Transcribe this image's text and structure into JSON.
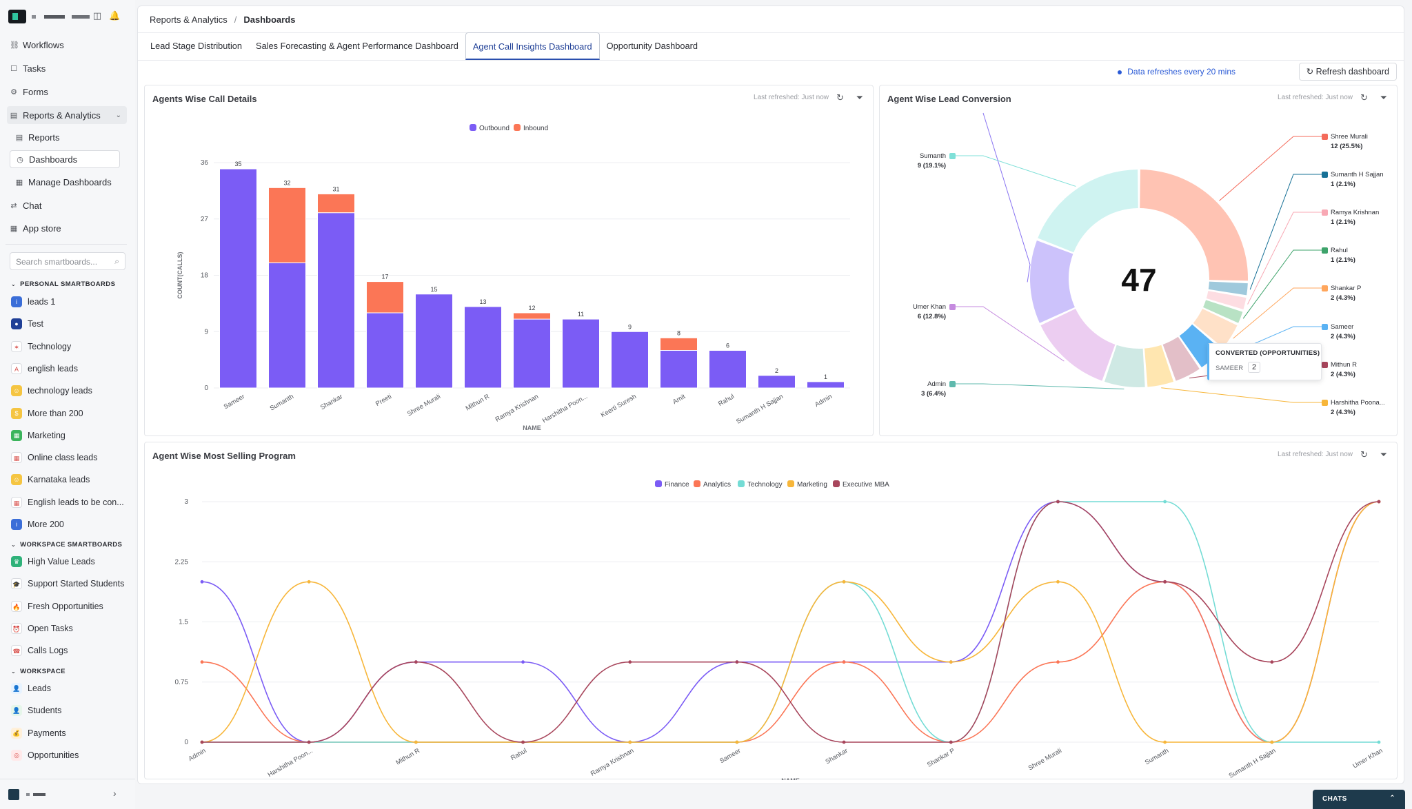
{
  "sidebar": {
    "nav": [
      {
        "label": "Workflows",
        "icon": "workflow-icon"
      },
      {
        "label": "Tasks",
        "icon": "task-icon"
      },
      {
        "label": "Forms",
        "icon": "form-icon"
      },
      {
        "label": "Reports & Analytics",
        "icon": "report-icon"
      },
      {
        "label": "Reports",
        "icon": "report-icon"
      },
      {
        "label": "Dashboards",
        "icon": "dashboard-icon"
      },
      {
        "label": "Manage Dashboards",
        "icon": "grid-icon"
      },
      {
        "label": "Chat",
        "icon": "chat-icon"
      },
      {
        "label": "App store",
        "icon": "app-store-icon"
      }
    ],
    "search_placeholder": "Search smartboards...",
    "personal_heading": "PERSONAL SMARTBOARDS",
    "personal": [
      {
        "label": "leads 1",
        "color": "#3b6ed8",
        "glyph": "i"
      },
      {
        "label": "Test",
        "color": "#1f3f96",
        "glyph": "●"
      },
      {
        "label": "Technology",
        "color": "#ffffff",
        "glyph": "✶"
      },
      {
        "label": "english leads",
        "color": "#ffffff",
        "glyph": "A"
      },
      {
        "label": "technology leads",
        "color": "#f5c542",
        "glyph": "☺"
      },
      {
        "label": "More than 200",
        "color": "#f5c542",
        "glyph": "$"
      },
      {
        "label": "Marketing",
        "color": "#3bb45c",
        "glyph": "▦"
      },
      {
        "label": "Online class leads",
        "color": "#ffffff",
        "glyph": "▦"
      },
      {
        "label": "Karnataka leads",
        "color": "#f5c542",
        "glyph": "☺"
      },
      {
        "label": "English leads to be con...",
        "color": "#ffffff",
        "glyph": "▦"
      },
      {
        "label": "More 200",
        "color": "#3b6ed8",
        "glyph": "i"
      }
    ],
    "workspace_sb_heading": "WORKSPACE SMARTBOARDS",
    "workspace_sb": [
      {
        "label": "High Value Leads",
        "color": "#2fb27a",
        "glyph": "♛"
      },
      {
        "label": "Support Started Students",
        "color": "#ffffff",
        "glyph": "🎓"
      },
      {
        "label": "Fresh Opportunities",
        "color": "#ffffff",
        "glyph": "🔥"
      },
      {
        "label": "Open Tasks",
        "color": "#ffffff",
        "glyph": "⏰"
      },
      {
        "label": "Calls Logs",
        "color": "#ffffff",
        "glyph": "☎"
      }
    ],
    "workspace_heading": "WORKSPACE",
    "workspace": [
      {
        "label": "Leads",
        "color": "#e7f3ff",
        "glyph": "👤"
      },
      {
        "label": "Students",
        "color": "#e6f6ea",
        "glyph": "👤"
      },
      {
        "label": "Payments",
        "color": "#fff0d9",
        "glyph": "💰"
      },
      {
        "label": "Opportunities",
        "color": "#ffe9ea",
        "glyph": "◎"
      }
    ]
  },
  "breadcrumb": {
    "parent": "Reports & Analytics",
    "separator": "/",
    "current": "Dashboards"
  },
  "tabs": [
    {
      "label": "Lead Stage Distribution",
      "active": false
    },
    {
      "label": "Sales Forecasting & Agent Performance Dashboard",
      "active": false
    },
    {
      "label": "Agent Call Insights Dashboard",
      "active": true
    },
    {
      "label": "Opportunity Dashboard",
      "active": false
    }
  ],
  "refresh_note": "Data refreshes every 20 mins",
  "refresh_button": "Refresh dashboard",
  "card_meta": "Last refreshed: Just now",
  "chats_label": "CHATS",
  "tooltip": {
    "title": "CONVERTED (OPPORTUNITIES)",
    "key": "SAMEER",
    "value": "2"
  },
  "chart_data": [
    {
      "type": "bar",
      "title": "Agents Wise Call Details",
      "stacked": true,
      "xlabel": "NAME",
      "ylabel": "COUNT(CALLS)",
      "ylim": [
        0,
        36
      ],
      "yticks": [
        0,
        9,
        18,
        27,
        36
      ],
      "legend_position": "top-center",
      "categories": [
        "Sameer",
        "Sumanth",
        "Shankar",
        "Preeti",
        "Shree Murali",
        "Mithun R",
        "Ramya Krishnan",
        "Harshitha Poon...",
        "Keerti Suresh",
        "Amit",
        "Rahul",
        "Sumanth H Sajjan",
        "Admin"
      ],
      "series": [
        {
          "name": "Outbound",
          "color": "#7b5cf5",
          "values": [
            35,
            20,
            28,
            12,
            15,
            13,
            11,
            11,
            9,
            6,
            6,
            2,
            1
          ]
        },
        {
          "name": "Inbound",
          "color": "#fb7656",
          "values": [
            0,
            12,
            3,
            5,
            0,
            0,
            1,
            0,
            0,
            2,
            0,
            0,
            0
          ]
        }
      ],
      "totals": [
        35,
        32,
        31,
        17,
        15,
        13,
        12,
        11,
        9,
        8,
        6,
        2,
        1
      ]
    },
    {
      "type": "pie",
      "title": "Agent Wise Lead Conversion",
      "donut": true,
      "center_value": "47",
      "slices": [
        {
          "label": "Shree Murali",
          "value": 12,
          "percent": "12 (25.5%)",
          "color": "#ffc3b3"
        },
        {
          "label": "Sumanth H Sajjan",
          "value": 1,
          "percent": "1 (2.1%)",
          "color": "#9fc9dc"
        },
        {
          "label": "Ramya Krishnan",
          "value": 1,
          "percent": "1 (2.1%)",
          "color": "#fddde2"
        },
        {
          "label": "Rahul",
          "value": 1,
          "percent": "1 (2.1%)",
          "color": "#b8e2c4"
        },
        {
          "label": "Shankar P",
          "value": 2,
          "percent": "2 (4.3%)",
          "color": "#ffe1c8"
        },
        {
          "label": "Sameer",
          "value": 2,
          "percent": "2 (4.3%)",
          "color": "#5ab2f3"
        },
        {
          "label": "Mithun R",
          "value": 2,
          "percent": "2 (4.3%)",
          "color": "#e3bfc8"
        },
        {
          "label": "Harshitha Poona...",
          "value": 2,
          "percent": "2 (4.3%)",
          "color": "#ffe6b0"
        },
        {
          "label": "Admin",
          "value": 3,
          "percent": "3 (6.4%)",
          "color": "#cfe9e4"
        },
        {
          "label": "Umer Khan",
          "value": 6,
          "percent": "6 (12.8%)",
          "color": "#eccdf1"
        },
        {
          "label": "",
          "value": 6,
          "percent": "",
          "color": "#ccc2fb"
        },
        {
          "label": "Sumanth",
          "value": 9,
          "percent": "9 (19.1%)",
          "color": "#cff3f1"
        }
      ],
      "label_marker_colors": [
        "#f46a5a",
        "#167096",
        "#f8a8b4",
        "#3ea36b",
        "#ffa65c",
        "#5ab2f3",
        "#a8465c",
        "#f7b63a",
        "#5fb9ad",
        "#c58adf",
        "#8873f2",
        "#7fe0d8"
      ]
    },
    {
      "type": "line",
      "title": "Agent Wise Most Selling Program",
      "xlabel": "NAME",
      "ylim": [
        0,
        3
      ],
      "yticks": [
        "0",
        "0.75",
        "1.5",
        "2.25",
        "3"
      ],
      "legend_position": "top-center",
      "categories": [
        "Admin",
        "Harshitha Poon...",
        "Mithun R",
        "Rahul",
        "Ramya Krishnan",
        "Sameer",
        "Shankar",
        "Shankar P",
        "Shree Murali",
        "Sumanth",
        "Sumanth H Sajjan",
        "Umer Khan"
      ],
      "series": [
        {
          "name": "Finance",
          "color": "#7b5cf5",
          "values": [
            2,
            0,
            1,
            1,
            0,
            1,
            1,
            1,
            3,
            2,
            0,
            3
          ]
        },
        {
          "name": "Analytics",
          "color": "#fb7656",
          "values": [
            1,
            0,
            0,
            0,
            0,
            0,
            1,
            0,
            1,
            2,
            0,
            3
          ]
        },
        {
          "name": "Technology",
          "color": "#74dcd5",
          "values": [
            0,
            0,
            0,
            0,
            0,
            0,
            2,
            0,
            3,
            3,
            0,
            0
          ]
        },
        {
          "name": "Marketing",
          "color": "#f7b63a",
          "values": [
            0,
            2,
            0,
            0,
            0,
            0,
            2,
            1,
            2,
            0,
            0,
            3
          ]
        },
        {
          "name": "Executive MBA",
          "color": "#a8465c",
          "values": [
            0,
            0,
            1,
            0,
            1,
            1,
            0,
            0,
            3,
            2,
            1,
            3
          ]
        }
      ]
    }
  ]
}
